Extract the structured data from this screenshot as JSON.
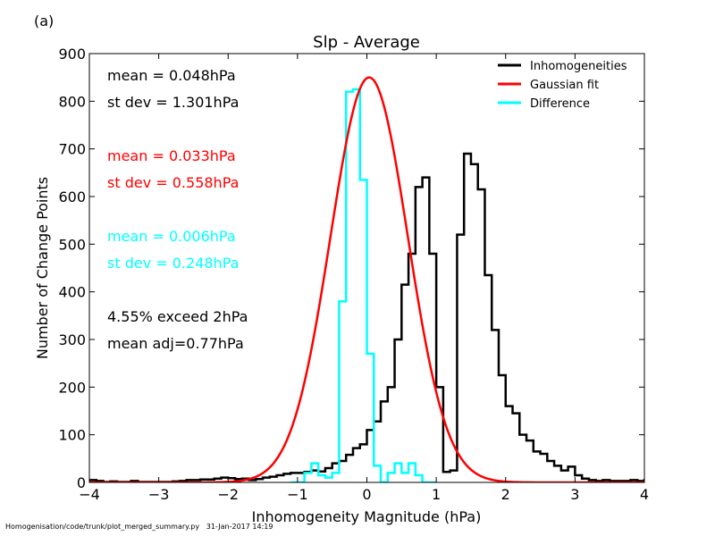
{
  "figure": {
    "panel_label": "(a)",
    "footer_path": "Homogenisation/code/trunk/plot_merged_summary.py",
    "footer_date": "31-Jan-2017 14:19"
  },
  "chart_data": {
    "type": "histogram",
    "title": "Slp - Average",
    "xlabel": "Inhomogeneity Magnitude (hPa)",
    "ylabel": "Number of Change Points",
    "xlim": [
      -4,
      4
    ],
    "ylim": [
      0,
      900
    ],
    "xticks": [
      "−4",
      "−3",
      "−2",
      "−1",
      "0",
      "1",
      "2",
      "3",
      "4"
    ],
    "yticks": [
      "0",
      "100",
      "200",
      "300",
      "400",
      "500",
      "600",
      "700",
      "800",
      "900"
    ],
    "grid": false,
    "legend_position": "top-right",
    "legend": [
      {
        "label": "Inhomogeneities",
        "color": "#000000"
      },
      {
        "label": "Gaussian fit",
        "color": "#ff0000"
      },
      {
        "label": "Difference",
        "color": "#00ffff"
      }
    ],
    "stats": [
      {
        "label": "mean =  0.048hPa",
        "color": "#000000"
      },
      {
        "label": "st dev =  1.301hPa",
        "color": "#000000"
      },
      {
        "label": "mean =  0.033hPa",
        "color": "#ff0000"
      },
      {
        "label": "st dev =  0.558hPa",
        "color": "#ff0000"
      },
      {
        "label": "mean =  0.006hPa",
        "color": "#00ffff"
      },
      {
        "label": "st dev =  0.248hPa",
        "color": "#00ffff"
      },
      {
        "label": "4.55% exceed 2hPa",
        "color": "#000000"
      },
      {
        "label": "mean adj=0.77hPa",
        "color": "#000000"
      }
    ],
    "bin_width": 0.1,
    "series": [
      {
        "name": "Inhomogeneities",
        "color": "#000000",
        "bin_start": -4.0,
        "values": [
          5,
          3,
          1,
          2,
          1,
          1,
          3,
          1,
          1,
          1,
          1,
          1,
          2,
          3,
          5,
          5,
          6,
          6,
          8,
          10,
          9,
          7,
          8,
          5,
          7,
          10,
          12,
          15,
          18,
          20,
          20,
          22,
          25,
          23,
          30,
          40,
          45,
          58,
          72,
          80,
          110,
          128,
          170,
          200,
          300,
          415,
          480,
          620,
          640,
          480,
          200,
          22,
          25,
          520,
          690,
          668,
          615,
          435,
          320,
          225,
          160,
          145,
          100,
          88,
          65,
          60,
          45,
          35,
          25,
          33,
          15,
          8,
          5,
          3,
          5,
          3,
          3,
          3,
          5,
          3,
          5,
          3,
          3,
          2,
          3,
          2,
          2,
          2,
          2,
          2
        ]
      },
      {
        "name": "Difference",
        "color": "#00ffff",
        "bin_start": -1.1,
        "values": [
          0,
          0,
          20,
          40,
          15,
          10,
          20,
          380,
          820,
          825,
          635,
          270,
          35,
          0,
          20,
          40,
          20,
          40,
          15,
          0,
          0
        ]
      }
    ],
    "gaussian_fit": {
      "name": "Gaussian fit",
      "color": "#ff0000",
      "mean": 0.033,
      "stdev": 0.558,
      "peak": 850
    }
  }
}
